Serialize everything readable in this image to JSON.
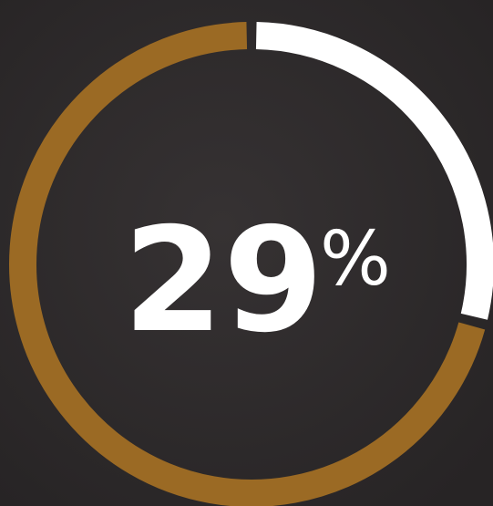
{
  "chart_data": {
    "type": "ring",
    "values": [
      29
    ],
    "unit": "%",
    "ylim": [
      0,
      100
    ],
    "colors": [
      "#ffffff",
      "#9b6a24"
    ]
  }
}
